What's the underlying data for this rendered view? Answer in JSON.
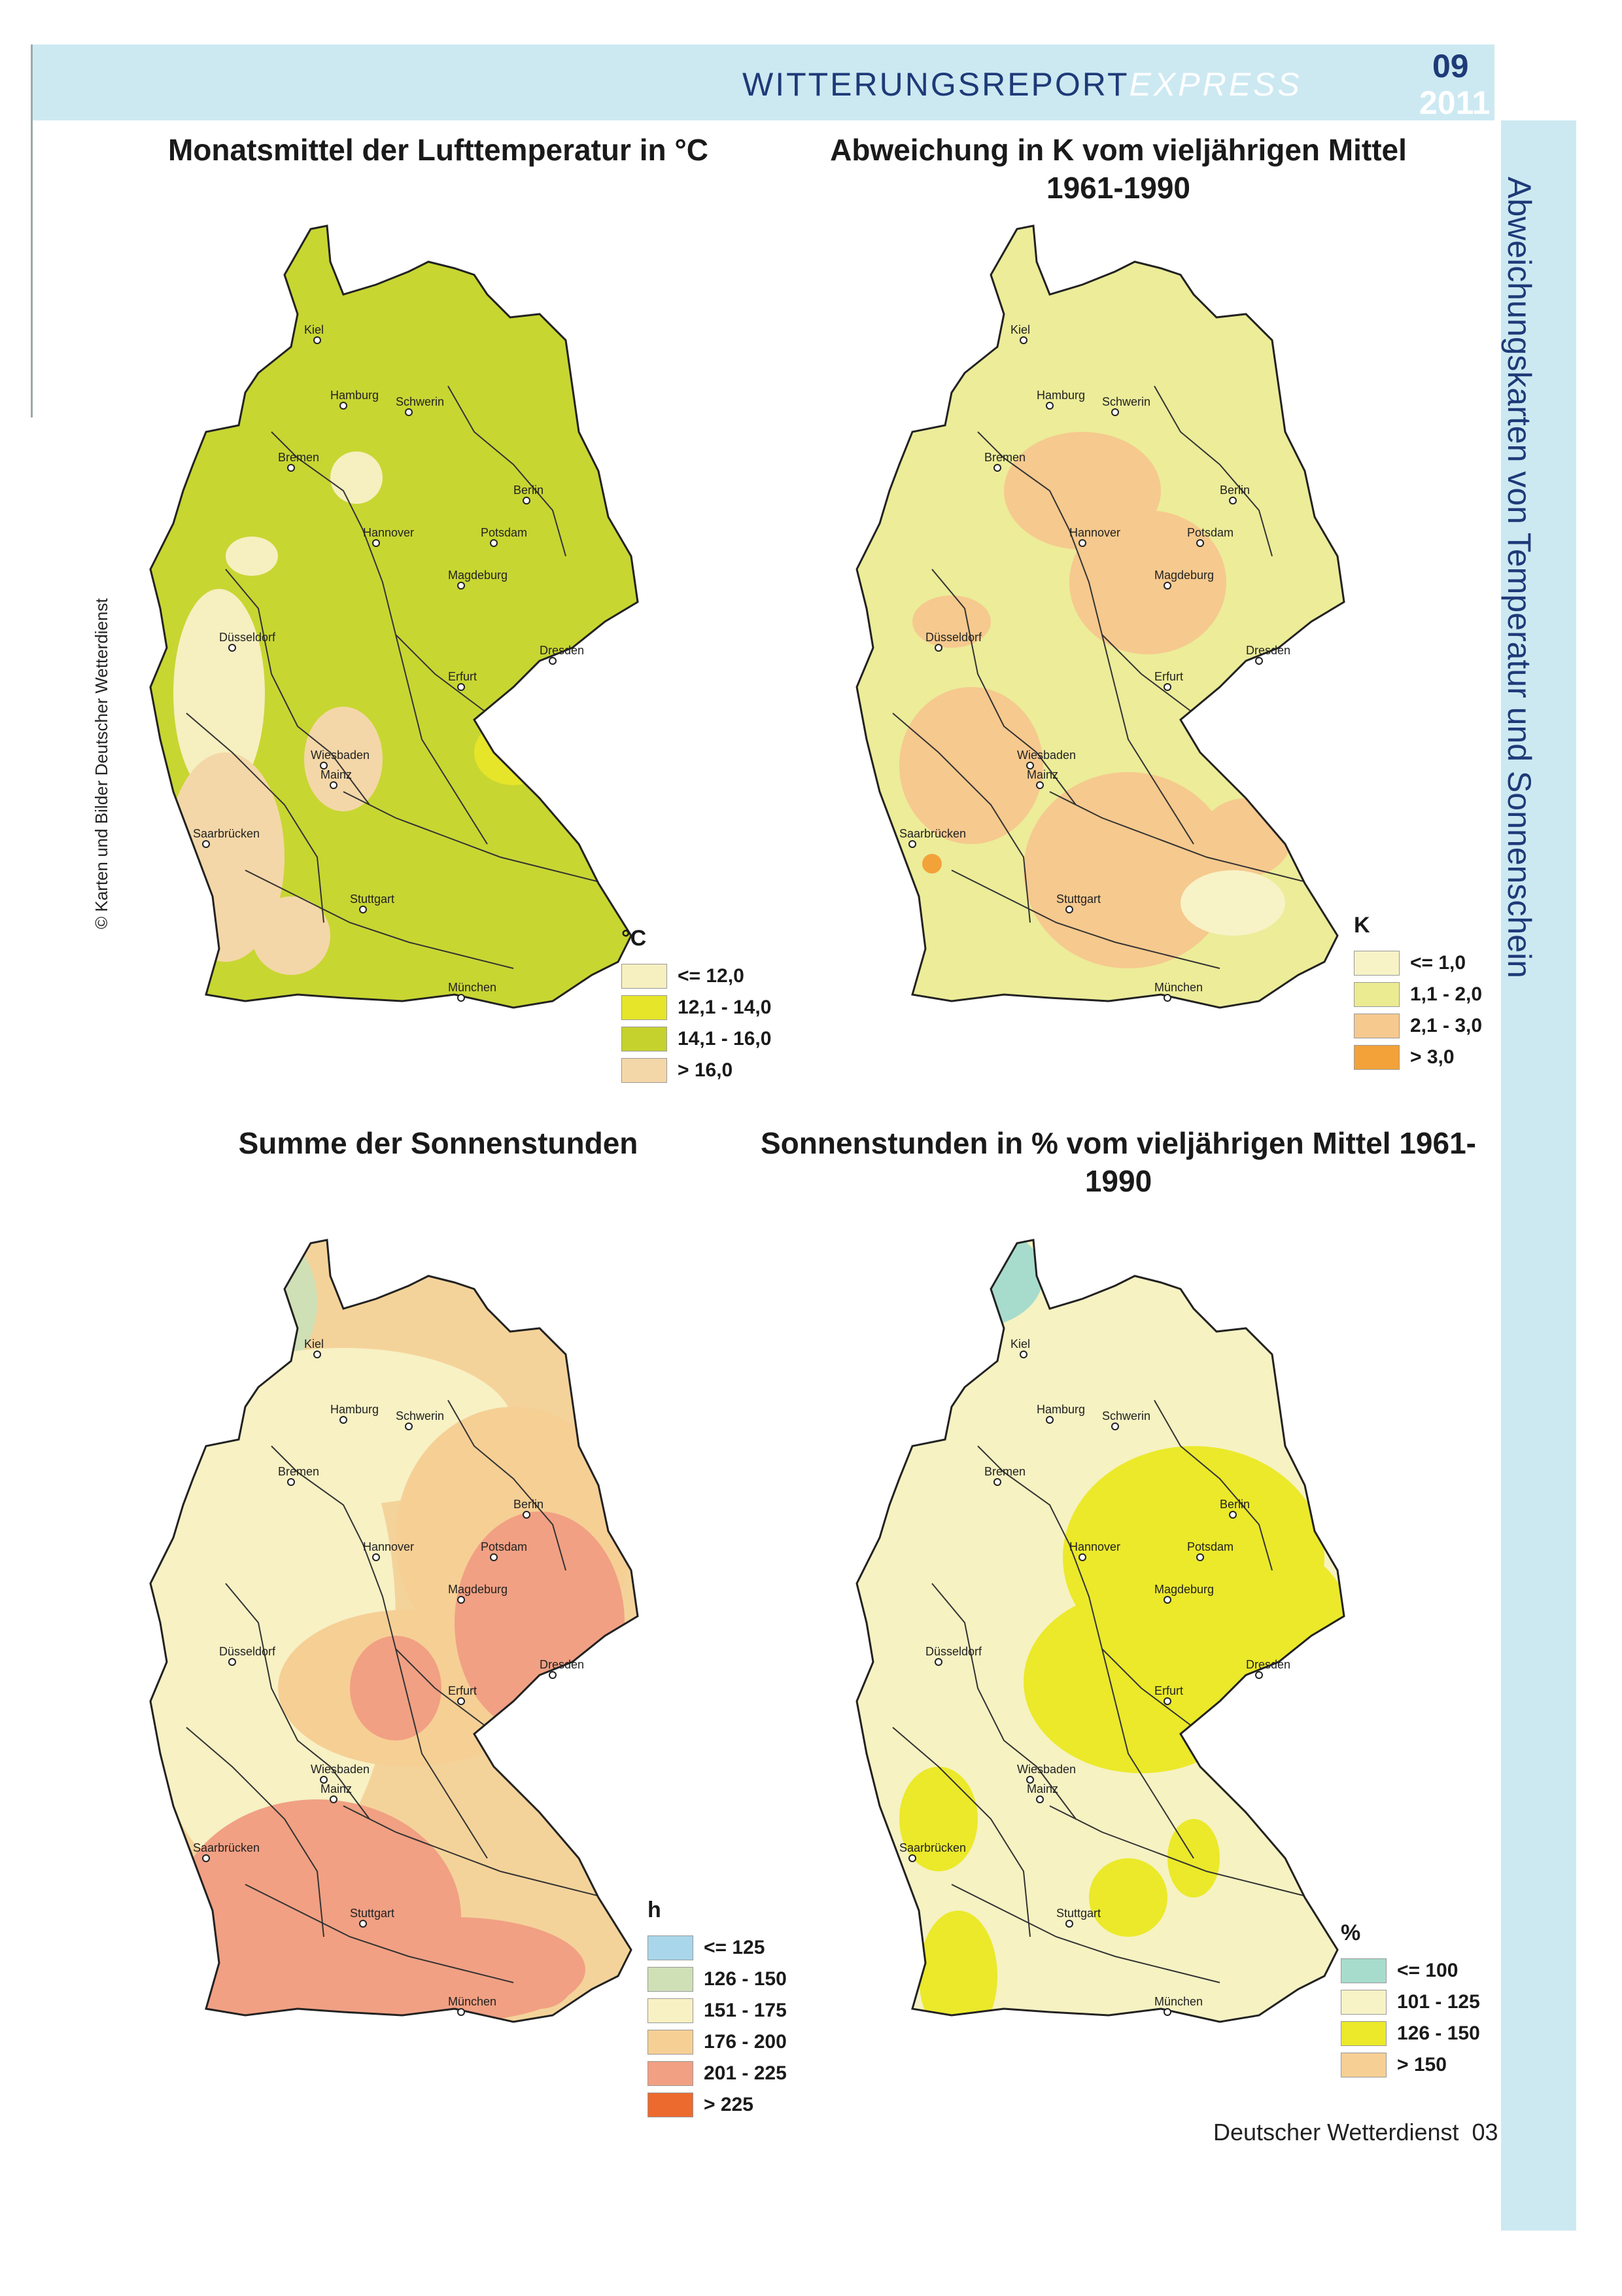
{
  "header": {
    "title_main": "WITTERUNGSREPORT",
    "title_suffix": "EXPRESS",
    "issue_month": "09",
    "issue_year": "2011"
  },
  "side_title": "Abweichungskarten von Temperatur und Sonnenschein",
  "credit": "© Karten und Bilder Deutscher Wetterdienst",
  "footer": {
    "publisher": "Deutscher Wetterdienst",
    "page": "03"
  },
  "maps": [
    {
      "title": "Monatsmittel der Lufttemperatur in °C",
      "base_color": "#c8d632",
      "legend": {
        "unit": "°C",
        "items": [
          {
            "label": "<= 12,0",
            "color": "#f6efc0"
          },
          {
            "label": "12,1 - 14,0",
            "color": "#e6e52a"
          },
          {
            "label": "14,1 - 16,0",
            "color": "#c5d22e"
          },
          {
            "label": "> 16,0",
            "color": "#f4d7a8"
          }
        ]
      }
    },
    {
      "title": "Abweichung in K vom vieljährigen Mittel 1961-1990",
      "base_color": "#ecec99",
      "legend": {
        "unit": "K",
        "items": [
          {
            "label": "<= 1,0",
            "color": "#f7f3c6"
          },
          {
            "label": "1,1 - 2,0",
            "color": "#ebeb92"
          },
          {
            "label": "2,1 - 3,0",
            "color": "#f6c98e"
          },
          {
            "label": "> 3,0",
            "color": "#f3a23a"
          }
        ]
      }
    },
    {
      "title": "Summe der Sonnenstunden",
      "base_color": "#f4d39a",
      "legend": {
        "unit": "h",
        "items": [
          {
            "label": "<= 125",
            "color": "#a9d6ea"
          },
          {
            "label": "126 - 150",
            "color": "#cfe0b6"
          },
          {
            "label": "151 - 175",
            "color": "#f7f1c4"
          },
          {
            "label": "176 - 200",
            "color": "#f6cf95"
          },
          {
            "label": "201 - 225",
            "color": "#f1a083"
          },
          {
            "label": "> 225",
            "color": "#ec6a2e"
          }
        ]
      }
    },
    {
      "title": "Sonnenstunden in % vom vieljährigen Mittel 1961-1990",
      "base_color": "#f6f2c2",
      "legend": {
        "unit": "%",
        "items": [
          {
            "label": "<= 100",
            "color": "#a7dccc"
          },
          {
            "label": "101 - 125",
            "color": "#f7f3c6"
          },
          {
            "label": "126 - 150",
            "color": "#ebe92a"
          },
          {
            "label": "> 150",
            "color": "#f6cf95"
          }
        ]
      }
    }
  ],
  "cities": [
    {
      "name": "Kiel"
    },
    {
      "name": "Hamburg"
    },
    {
      "name": "Schwerin"
    },
    {
      "name": "Bremen"
    },
    {
      "name": "Berlin"
    },
    {
      "name": "Hannover"
    },
    {
      "name": "Potsdam"
    },
    {
      "name": "Magdeburg"
    },
    {
      "name": "Düsseldorf"
    },
    {
      "name": "Dresden"
    },
    {
      "name": "Erfurt"
    },
    {
      "name": "Wiesbaden"
    },
    {
      "name": "Mainz"
    },
    {
      "name": "Saarbrücken"
    },
    {
      "name": "Stuttgart"
    },
    {
      "name": "München"
    }
  ]
}
